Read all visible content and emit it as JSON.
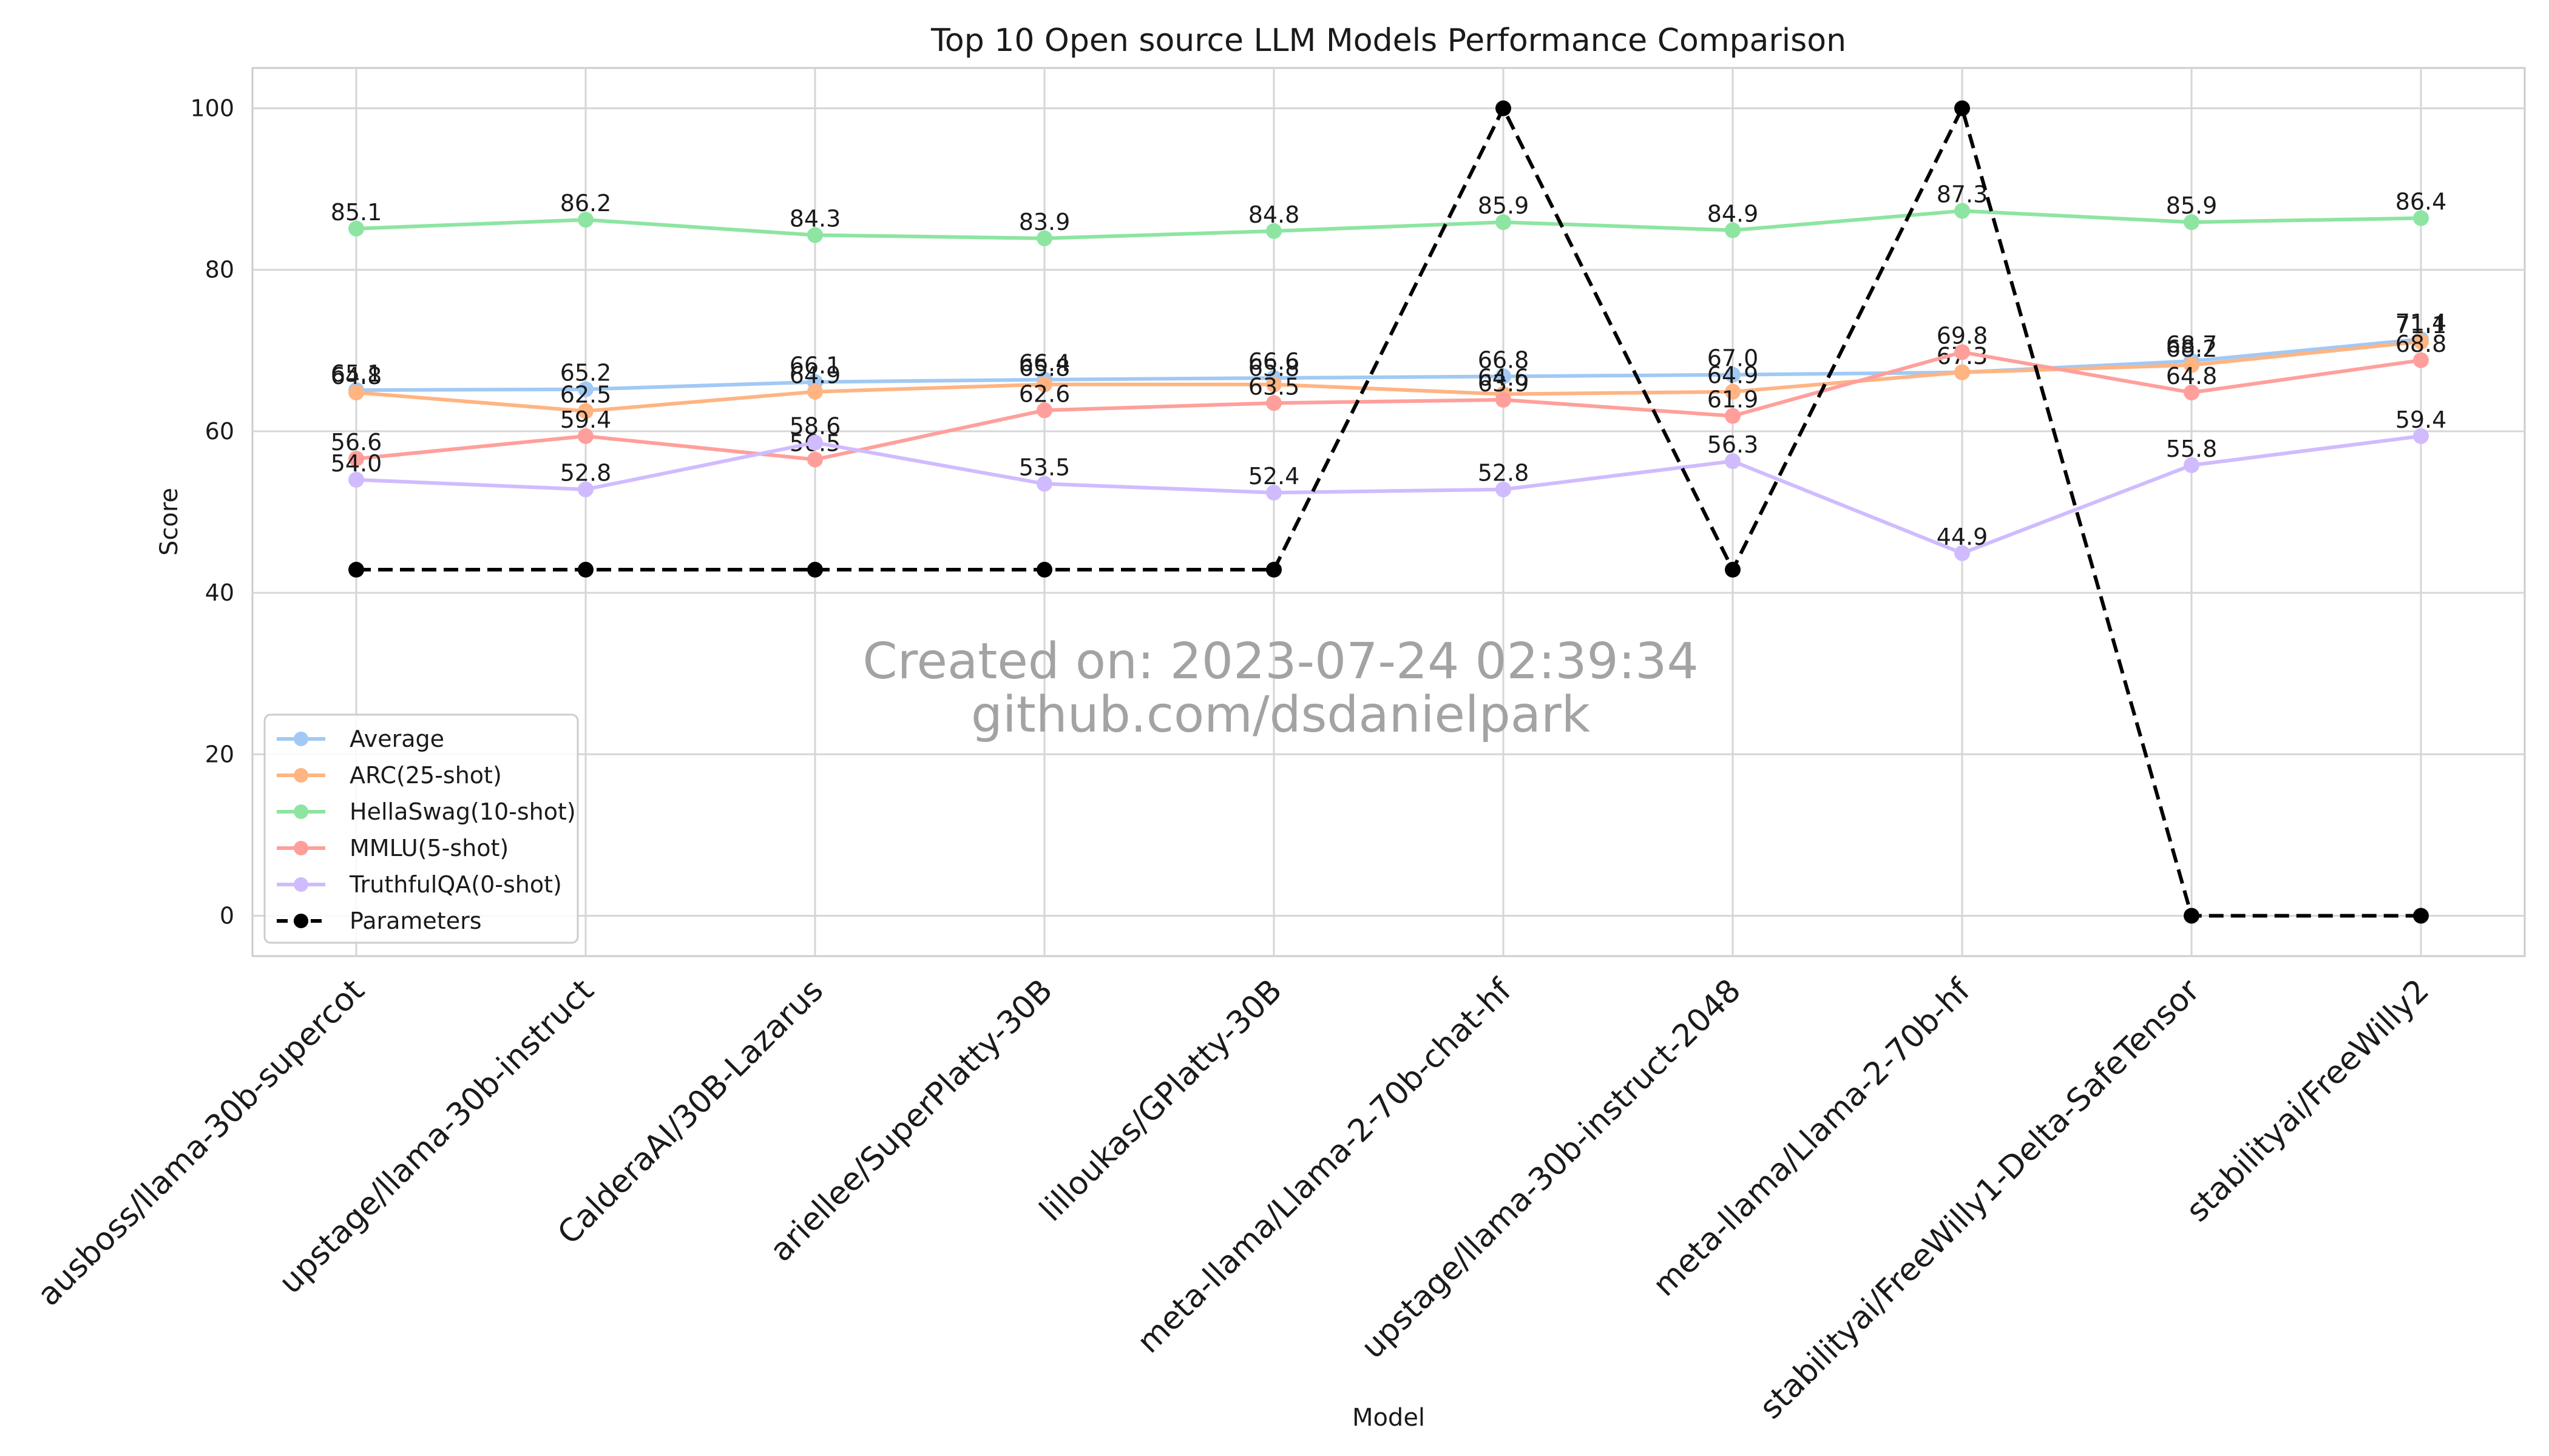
{
  "chart_data": {
    "type": "line",
    "title": "Top 10 Open source LLM Models Performance Comparison",
    "xlabel": "Model",
    "ylabel": "Score",
    "ylim": [
      -5,
      105
    ],
    "yticks": [
      0,
      20,
      40,
      60,
      80,
      100
    ],
    "grid": true,
    "legend_position": "lower-left",
    "categories": [
      "ausboss/llama-30b-supercot",
      "upstage/llama-30b-instruct",
      "CalderaAI/30B-Lazarus",
      "ariellee/SuperPlatty-30B",
      "lilloukas/GPlatty-30B",
      "meta-llama/Llama-2-70b-chat-hf",
      "upstage/llama-30b-instruct-2048",
      "meta-llama/Llama-2-70b-hf",
      "stabilityai/FreeWilly1-Delta-SafeTensor",
      "stabilityai/FreeWilly2"
    ],
    "series": [
      {
        "name": "Average",
        "color": "#a1c9f4",
        "dashed": false,
        "labels": true,
        "values": [
          65.1,
          65.2,
          66.1,
          66.4,
          66.6,
          66.8,
          67.0,
          67.3,
          68.7,
          71.4
        ]
      },
      {
        "name": "ARC(25-shot)",
        "color": "#ffb482",
        "dashed": false,
        "labels": true,
        "values": [
          64.8,
          62.5,
          64.9,
          65.8,
          65.8,
          64.6,
          64.9,
          67.3,
          68.2,
          71.1
        ]
      },
      {
        "name": "HellaSwag(10-shot)",
        "color": "#8de5a1",
        "dashed": false,
        "labels": true,
        "values": [
          85.1,
          86.2,
          84.3,
          83.9,
          84.8,
          85.9,
          84.9,
          87.3,
          85.9,
          86.4
        ]
      },
      {
        "name": "MMLU(5-shot)",
        "color": "#ff9f9b",
        "dashed": false,
        "labels": true,
        "values": [
          56.6,
          59.4,
          56.5,
          62.6,
          63.5,
          63.9,
          61.9,
          69.8,
          64.8,
          68.8
        ]
      },
      {
        "name": "TruthfulQA(0-shot)",
        "color": "#d0bbff",
        "dashed": false,
        "labels": true,
        "values": [
          54.0,
          52.8,
          58.6,
          53.5,
          52.4,
          52.8,
          56.3,
          44.9,
          55.8,
          59.4
        ]
      },
      {
        "name": "Parameters",
        "color": "#000000",
        "dashed": true,
        "labels": false,
        "values": [
          42.86,
          42.86,
          42.86,
          42.86,
          42.86,
          100,
          42.86,
          100,
          0,
          0
        ]
      }
    ],
    "watermark": [
      "Created on: 2023-07-24 02:39:34",
      "github.com/dsdanielpark"
    ]
  }
}
